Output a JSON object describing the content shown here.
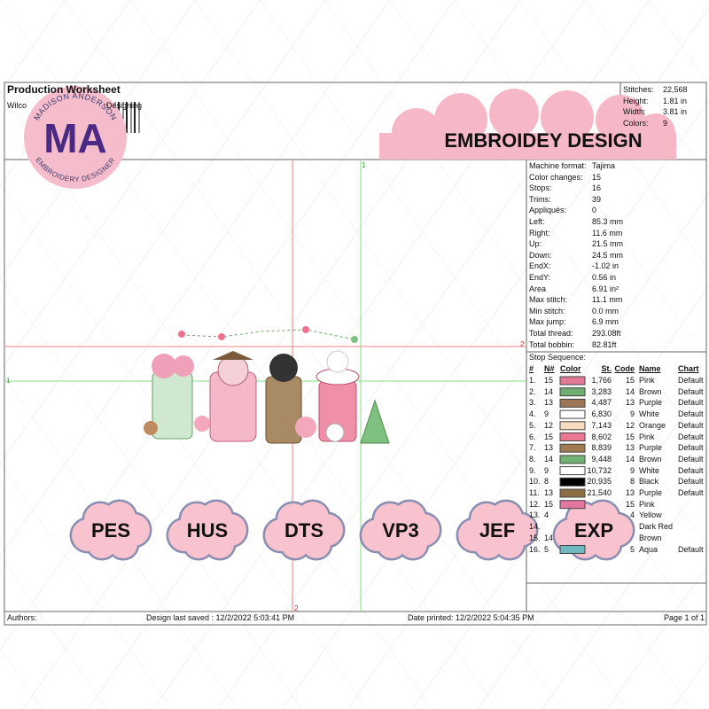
{
  "header": {
    "title": "Production Worksheet",
    "subtitle_left": "Wilco",
    "subtitle_right": "Designing"
  },
  "logo": {
    "initials": "MA",
    "top_text": "MADISON ANDERSON",
    "bottom_text": "EMBROIDERY DESIGNER"
  },
  "summary": [
    {
      "label": "Stitches:",
      "value": "22,568"
    },
    {
      "label": "Height:",
      "value": "1.81 in"
    },
    {
      "label": "Width:",
      "value": "3.81 in"
    },
    {
      "label": "Colors:",
      "value": "9"
    }
  ],
  "banner": "EMBROIDEY DESIGN",
  "machine_info": [
    {
      "label": "Machine format:",
      "value": "Tajima"
    },
    {
      "label": "Color changes:",
      "value": "15"
    },
    {
      "label": "Stops:",
      "value": "16"
    },
    {
      "label": "Trims:",
      "value": "39"
    },
    {
      "label": "Appliqués:",
      "value": "0"
    },
    {
      "label": "Left:",
      "value": "85.3 mm"
    },
    {
      "label": "Right:",
      "value": "11.6 mm"
    },
    {
      "label": "Up:",
      "value": "21.5 mm"
    },
    {
      "label": "Down:",
      "value": "24.5 mm"
    },
    {
      "label": "EndX:",
      "value": "-1.02 in"
    },
    {
      "label": "EndY:",
      "value": "0.56 in"
    },
    {
      "label": "Area",
      "value": "6.91 in²"
    },
    {
      "label": "Max stitch:",
      "value": "11.1 mm"
    },
    {
      "label": "Min stitch:",
      "value": "0.0 mm"
    },
    {
      "label": "Max jump:",
      "value": "6.9 mm"
    },
    {
      "label": "Total thread:",
      "value": "293.08ft"
    },
    {
      "label": "Total bobbin:",
      "value": "82.81ft"
    }
  ],
  "stop_sequence": {
    "title": "Stop Sequence:",
    "headers": [
      "#",
      "N#",
      "Color",
      "St.",
      "Code",
      "Name",
      "Chart"
    ],
    "rows": [
      {
        "num": "1.",
        "n": "15",
        "color": "#e27a95",
        "st": "1,766",
        "code": "15",
        "name": "Pink",
        "chart": "Default"
      },
      {
        "num": "2.",
        "n": "14",
        "color": "#6fae72",
        "st": "3,283",
        "code": "14",
        "name": "Brown",
        "chart": "Default"
      },
      {
        "num": "3.",
        "n": "13",
        "color": "#9c7654",
        "st": "4,487",
        "code": "13",
        "name": "Purple",
        "chart": "Default"
      },
      {
        "num": "4.",
        "n": "9",
        "color": "#ffffff",
        "st": "6,830",
        "code": "9",
        "name": "White",
        "chart": "Default"
      },
      {
        "num": "5.",
        "n": "12",
        "color": "#f8dcc0",
        "st": "7,143",
        "code": "12",
        "name": "Orange",
        "chart": "Default"
      },
      {
        "num": "6.",
        "n": "15",
        "color": "#ea7892",
        "st": "8,602",
        "code": "15",
        "name": "Pink",
        "chart": "Default"
      },
      {
        "num": "7.",
        "n": "13",
        "color": "#a27a52",
        "st": "8,839",
        "code": "13",
        "name": "Purple",
        "chart": "Default"
      },
      {
        "num": "8.",
        "n": "14",
        "color": "#72b274",
        "st": "9,448",
        "code": "14",
        "name": "Brown",
        "chart": "Default"
      },
      {
        "num": "9.",
        "n": "9",
        "color": "#ffffff",
        "st": "10,732",
        "code": "9",
        "name": "White",
        "chart": "Default"
      },
      {
        "num": "10.",
        "n": "8",
        "color": "#000000",
        "st": "20,935",
        "code": "8",
        "name": "Black",
        "chart": "Default"
      },
      {
        "num": "11.",
        "n": "13",
        "color": "#8c6c44",
        "st": "21,540",
        "code": "13",
        "name": "Purple",
        "chart": "Default"
      },
      {
        "num": "12.",
        "n": "15",
        "color": "#e476a2",
        "st": null,
        "code": "15",
        "name": "Pink",
        "chart": null
      },
      {
        "num": "13.",
        "n": "4",
        "color": null,
        "st": null,
        "code": "4",
        "name": "Yellow",
        "chart": null
      },
      {
        "num": "14.",
        "n": null,
        "color": null,
        "st": null,
        "code": null,
        "name": "Dark Red",
        "chart": null
      },
      {
        "num": "15.",
        "n": "14",
        "color": null,
        "st": null,
        "code": null,
        "name": "Brown",
        "chart": null
      },
      {
        "num": "16.",
        "n": "5",
        "color": "#6fb8c0",
        "st": null,
        "code": "5",
        "name": "Aqua",
        "chart": "Default"
      }
    ]
  },
  "formats": [
    "PES",
    "HUS",
    "DTS",
    "VP3",
    "JEF",
    "EXP"
  ],
  "crosshair_labels": {
    "green_v": "1",
    "green_h": "1",
    "red_v": "2",
    "red_h": "2"
  },
  "footer": {
    "authors": "Authors:",
    "saved": "Design last saved : 12/2/2022 5:03:41 PM",
    "printed": "Date printed: 12/2/2022 5:04:35 PM",
    "page": "Page 1 of 1"
  }
}
